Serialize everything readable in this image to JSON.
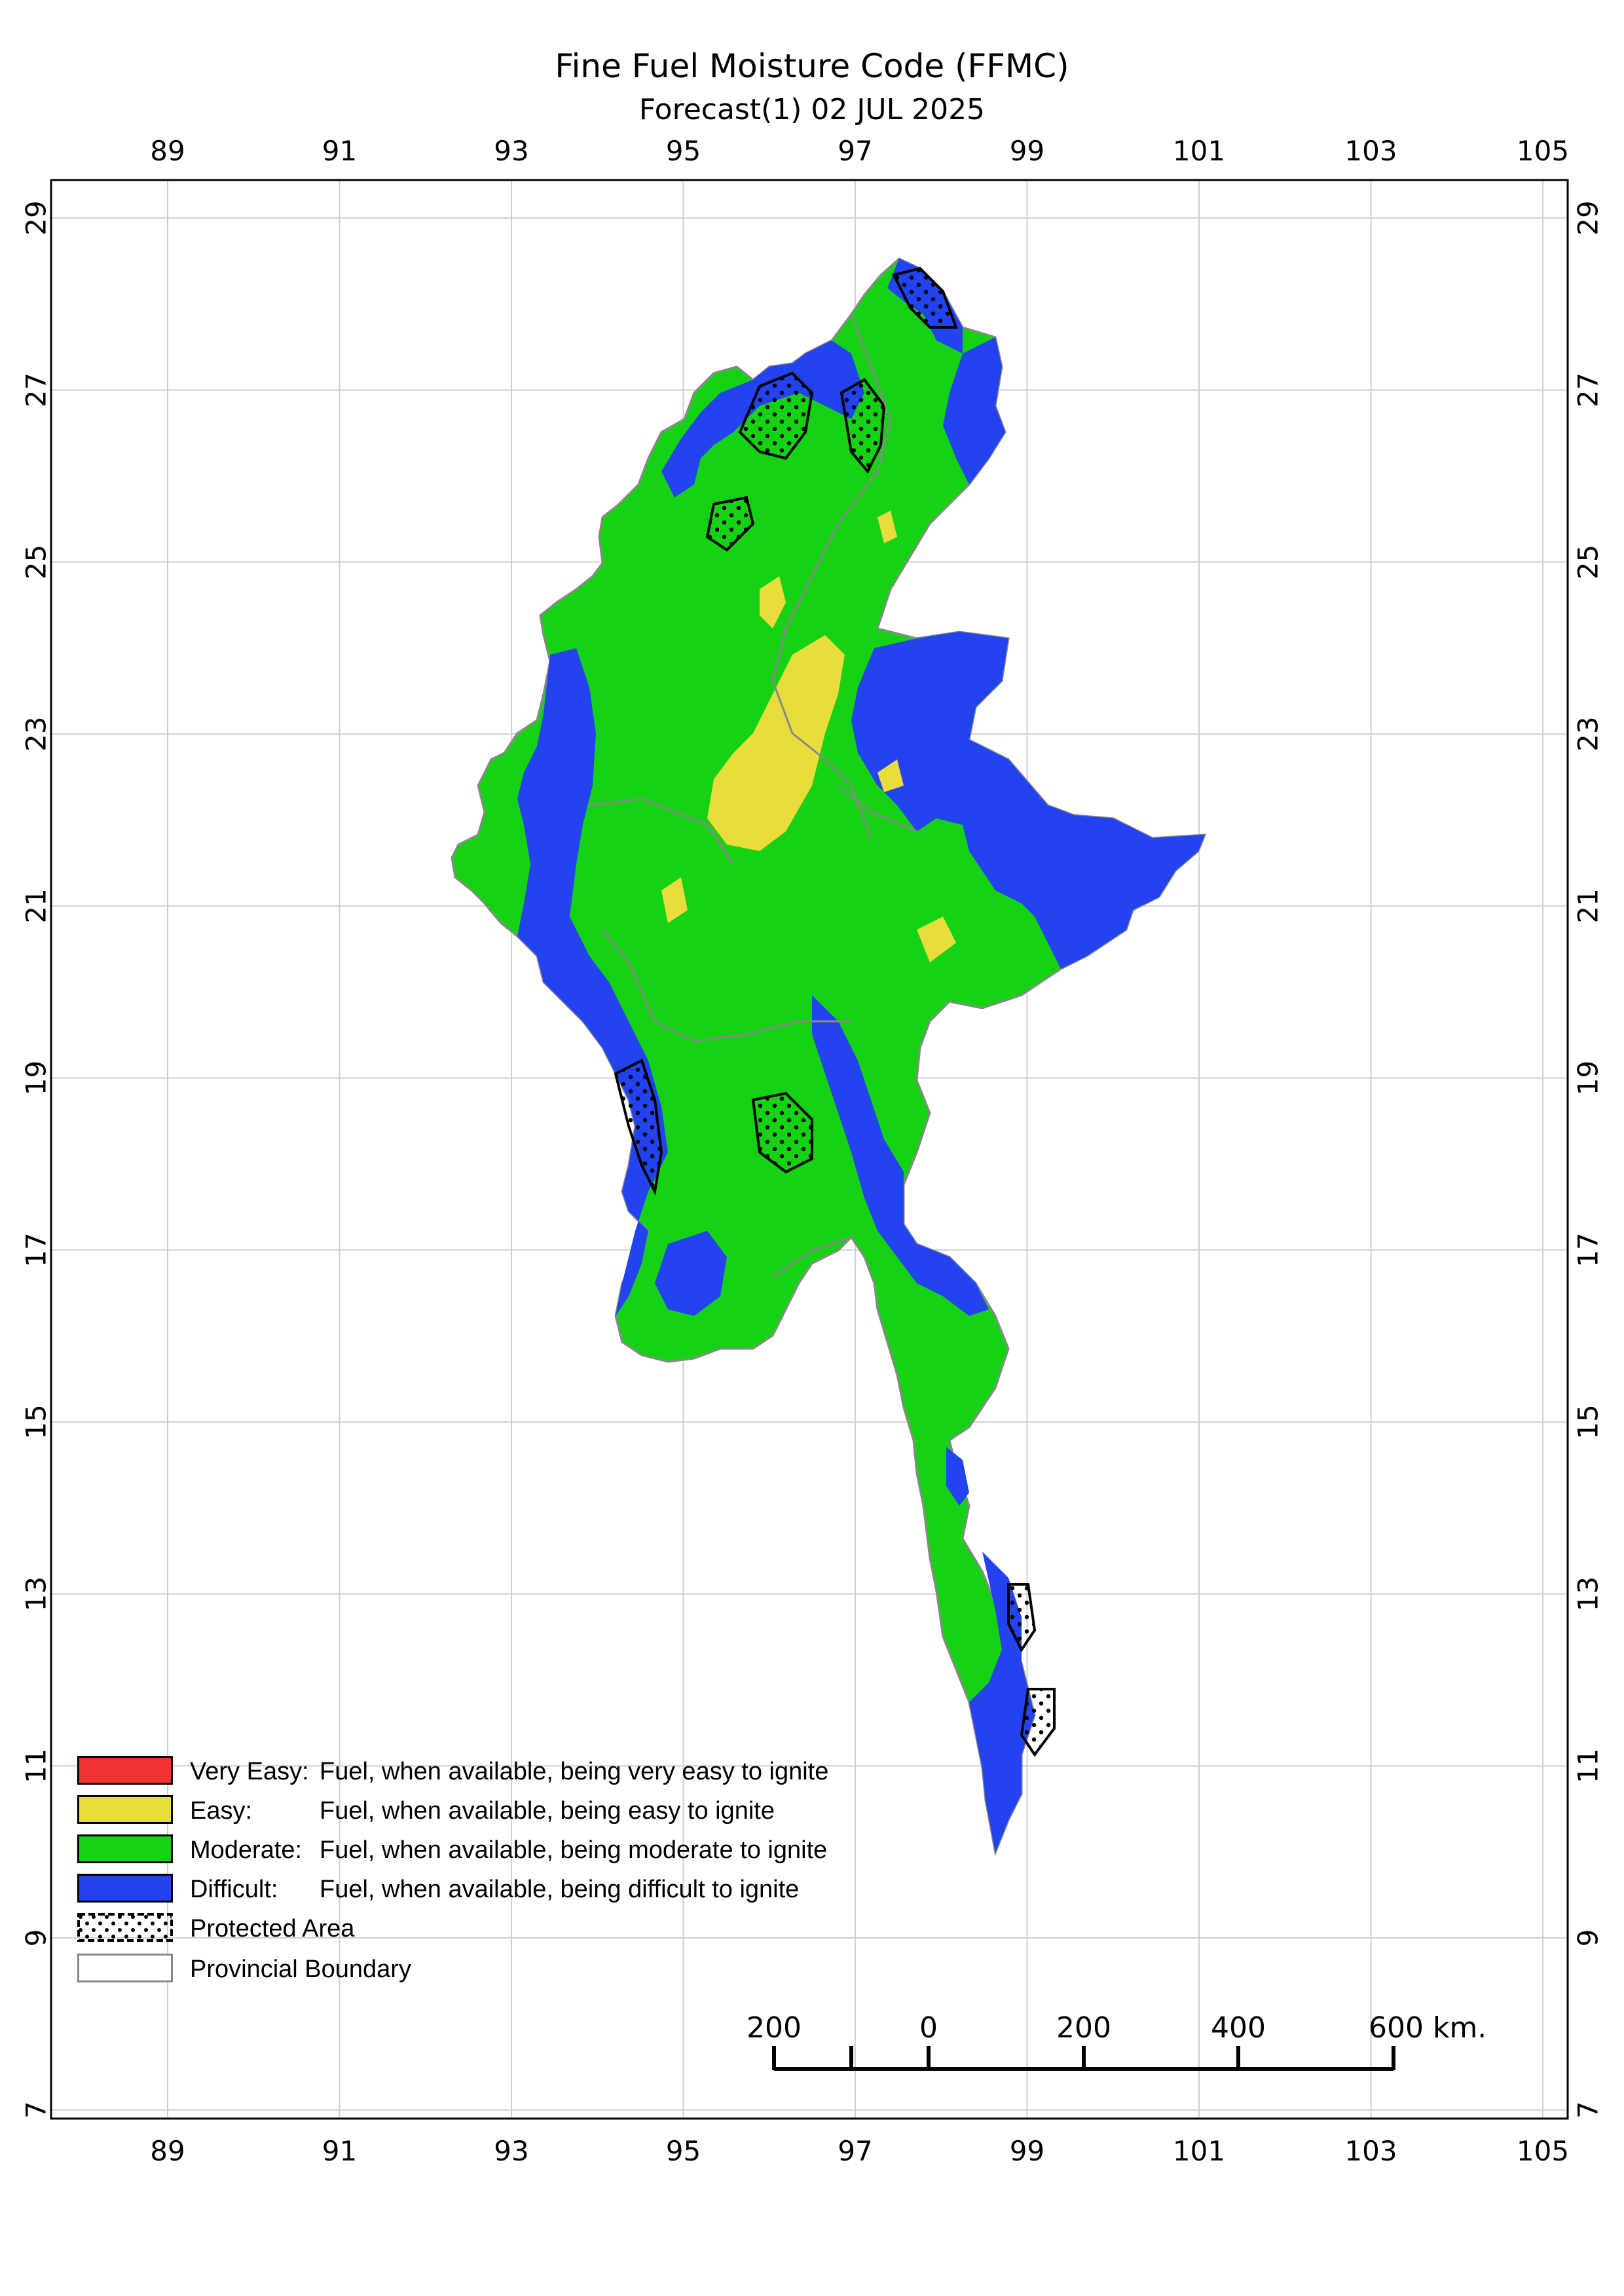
{
  "title": "Fine Fuel Moisture Code (FFMC)",
  "subtitle": "Forecast(1) 02 JUL 2025",
  "axes": {
    "lon_ticks": [
      "89",
      "91",
      "93",
      "95",
      "97",
      "99",
      "101",
      "103",
      "105"
    ],
    "lat_ticks": [
      "29",
      "27",
      "25",
      "23",
      "21",
      "19",
      "17",
      "15",
      "13",
      "11",
      "9",
      "7"
    ]
  },
  "colors": {
    "very_easy": "#f03232",
    "easy": "#e8dd3c",
    "moderate": "#16d214",
    "difficult": "#2443f0",
    "boundary": "#888888"
  },
  "legend": [
    {
      "name": "Very Easy:",
      "desc": "Fuel, when available, being very easy to ignite",
      "color": "#f03232"
    },
    {
      "name": "Easy:",
      "desc": "Fuel, when available, being easy to ignite",
      "color": "#e8dd3c"
    },
    {
      "name": "Moderate:",
      "desc": "Fuel, when available, being moderate to ignite",
      "color": "#16d214"
    },
    {
      "name": "Difficult:",
      "desc": "Fuel, when available, being difficult to ignite",
      "color": "#2443f0"
    },
    {
      "name": "Protected Area",
      "desc": "",
      "color": "dotted"
    },
    {
      "name": "Provincial Boundary",
      "desc": "",
      "color": "#888888"
    }
  ],
  "scale_bar": {
    "labels": [
      "200",
      "0",
      "200",
      "400",
      "600 km."
    ]
  }
}
